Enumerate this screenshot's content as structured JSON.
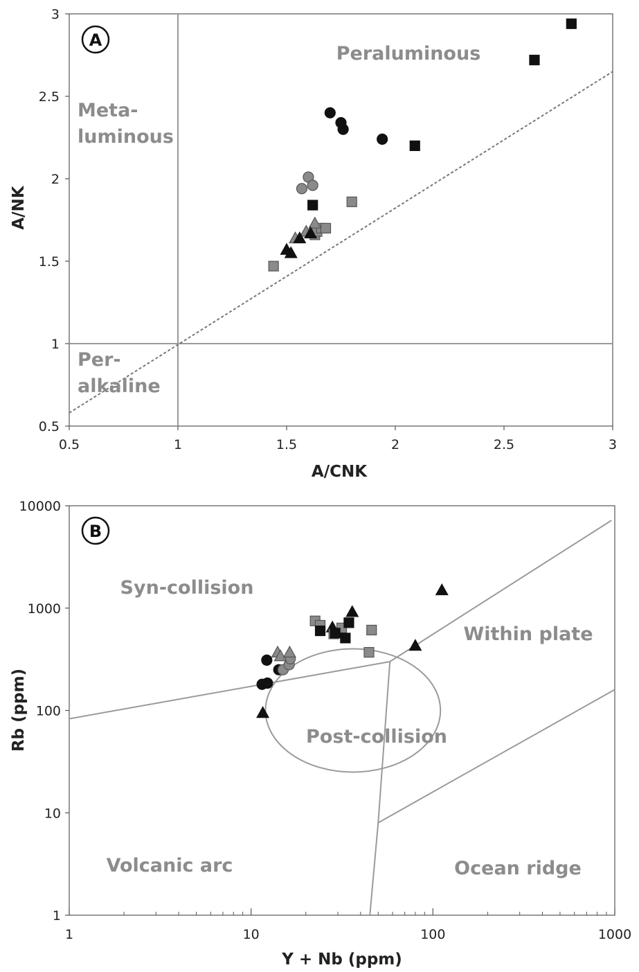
{
  "colors": {
    "black": "#111111",
    "grey_marker": "#8a8a8a",
    "region_label": "#8c8c8c",
    "boundary_line": "#9a9a9a",
    "dotted_line": "#777777"
  },
  "chart_data": [
    {
      "panel": "A",
      "type": "scatter",
      "xlabel": "A/CNK",
      "ylabel": "A/NK",
      "xlim": [
        0.5,
        3
      ],
      "ylim": [
        0.5,
        3
      ],
      "x_ticks": [
        "0.5",
        "1",
        "1.5",
        "2",
        "2.5",
        "3"
      ],
      "y_ticks": [
        "0.5",
        "1",
        "1.5",
        "2",
        "2.5",
        "3"
      ],
      "grid": false,
      "regions": [
        {
          "id": "peraluminous",
          "lines": [
            "Peraluminous"
          ]
        },
        {
          "id": "metaluminous",
          "lines": [
            "Meta-",
            "luminous"
          ]
        },
        {
          "id": "peralkaline",
          "lines": [
            "Per-",
            "alkaline"
          ]
        }
      ],
      "reference_lines": [
        {
          "id": "v-acnk-1",
          "style": "solid",
          "points": [
            [
              1,
              0.5
            ],
            [
              1,
              3
            ]
          ]
        },
        {
          "id": "h-anK-1",
          "style": "solid",
          "points": [
            [
              0.5,
              1
            ],
            [
              3,
              1
            ]
          ]
        },
        {
          "id": "diagonal",
          "style": "dotted",
          "points": [
            [
              0.5,
              0.58
            ],
            [
              3,
              2.65
            ]
          ]
        }
      ],
      "series": [
        {
          "marker": "square",
          "fill": "black",
          "points": [
            [
              2.81,
              2.94
            ],
            [
              2.64,
              2.72
            ],
            [
              2.09,
              2.2
            ],
            [
              1.62,
              1.84
            ]
          ]
        },
        {
          "marker": "circle",
          "fill": "black",
          "points": [
            [
              1.7,
              2.4
            ],
            [
              1.75,
              2.34
            ],
            [
              1.76,
              2.3
            ],
            [
              1.94,
              2.24
            ]
          ]
        },
        {
          "marker": "circle",
          "fill": "grey",
          "points": [
            [
              1.6,
              2.01
            ],
            [
              1.62,
              1.96
            ],
            [
              1.57,
              1.94
            ]
          ]
        },
        {
          "marker": "square",
          "fill": "grey",
          "points": [
            [
              1.8,
              1.86
            ],
            [
              1.44,
              1.47
            ],
            [
              1.63,
              1.66
            ],
            [
              1.64,
              1.68
            ],
            [
              1.66,
              1.7
            ],
            [
              1.68,
              1.7
            ]
          ]
        },
        {
          "marker": "triangle",
          "fill": "grey",
          "points": [
            [
              1.63,
              1.73
            ],
            [
              1.59,
              1.68
            ],
            [
              1.54,
              1.64
            ]
          ]
        },
        {
          "marker": "triangle",
          "fill": "black",
          "points": [
            [
              1.5,
              1.57
            ],
            [
              1.52,
              1.55
            ],
            [
              1.56,
              1.64
            ],
            [
              1.61,
              1.67
            ]
          ]
        }
      ]
    },
    {
      "panel": "B",
      "type": "scatter",
      "xlabel": "Y + Nb (ppm)",
      "ylabel": "Rb (ppm)",
      "xscale": "log",
      "yscale": "log",
      "xlim": [
        1,
        1000
      ],
      "ylim": [
        1,
        10000
      ],
      "x_ticks": [
        "1",
        "10",
        "100",
        "1000"
      ],
      "y_ticks": [
        "1",
        "10",
        "100",
        "1000",
        "10000"
      ],
      "grid": false,
      "regions": [
        {
          "id": "syn-collision",
          "lines": [
            "Syn-collision"
          ]
        },
        {
          "id": "within-plate",
          "lines": [
            "Within plate"
          ]
        },
        {
          "id": "post-collision",
          "lines": [
            "Post-collision"
          ]
        },
        {
          "id": "volcanic-arc",
          "lines": [
            "Volcanic arc"
          ]
        },
        {
          "id": "ocean-ridge",
          "lines": [
            "Ocean ridge"
          ]
        }
      ],
      "boundary_lines": [
        {
          "id": "syncol-vag",
          "points": [
            [
              1,
              83
            ],
            [
              58,
              300
            ]
          ]
        },
        {
          "id": "syncol-wpg",
          "points": [
            [
              58,
              300
            ],
            [
              960,
              7200
            ]
          ]
        },
        {
          "id": "vag-orc",
          "points": [
            [
              58,
              300
            ],
            [
              50,
              8
            ],
            [
              45,
              1
            ]
          ]
        },
        {
          "id": "wpg-org",
          "points": [
            [
              50,
              8
            ],
            [
              1000,
              160
            ]
          ]
        }
      ],
      "post_collision_ellipse": {
        "x_range": [
          12,
          110
        ],
        "y_range": [
          25,
          400
        ]
      },
      "series": [
        {
          "marker": "circle",
          "fill": "black",
          "points": [
            [
              12.2,
              310
            ],
            [
              11.5,
              180
            ],
            [
              12.3,
              185
            ],
            [
              14.2,
              250
            ]
          ]
        },
        {
          "marker": "circle",
          "fill": "grey",
          "points": [
            [
              15,
              250
            ],
            [
              16.2,
              280
            ],
            [
              16.4,
              320
            ]
          ]
        },
        {
          "marker": "triangle",
          "fill": "grey",
          "points": [
            [
              14,
              370
            ],
            [
              14.5,
              340
            ],
            [
              16.3,
              370
            ]
          ]
        },
        {
          "marker": "triangle",
          "fill": "black",
          "points": [
            [
              11.6,
              95
            ],
            [
              28,
              650
            ],
            [
              36,
              920
            ],
            [
              80,
              430
            ],
            [
              112,
              1500
            ]
          ]
        },
        {
          "marker": "square",
          "fill": "grey",
          "points": [
            [
              22.5,
              750
            ],
            [
              24,
              680
            ],
            [
              31.5,
              640
            ],
            [
              46,
              610
            ],
            [
              44.5,
              370
            ],
            [
              28.5,
              560
            ]
          ]
        },
        {
          "marker": "square",
          "fill": "black",
          "points": [
            [
              24,
              600
            ],
            [
              29,
              570
            ],
            [
              33,
              510
            ],
            [
              34.5,
              720
            ]
          ]
        }
      ]
    }
  ],
  "panels": {
    "a": {
      "letter": "A"
    },
    "b": {
      "letter": "B"
    }
  }
}
